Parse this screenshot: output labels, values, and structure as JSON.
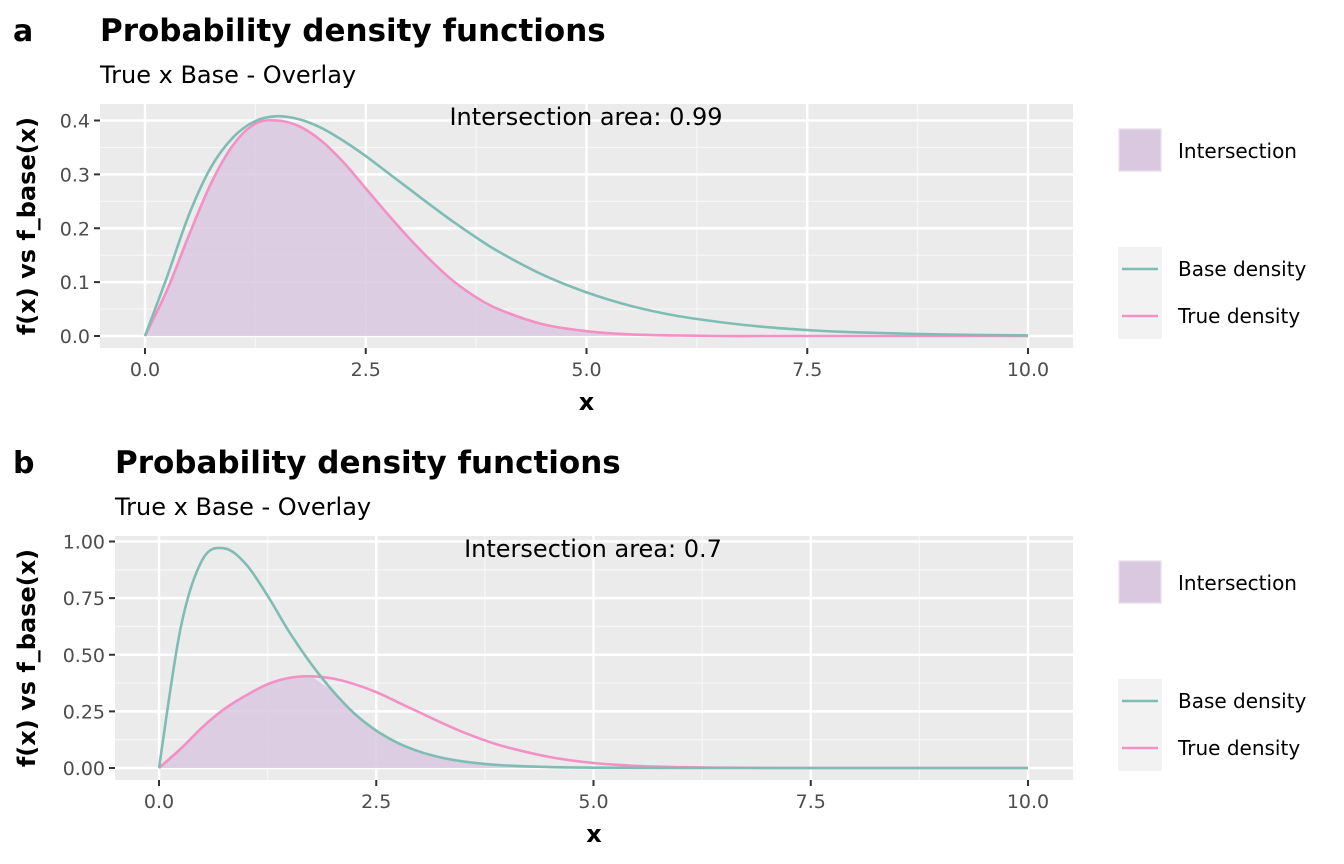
{
  "chart_data": [
    {
      "type": "line",
      "tag": "a",
      "title": "Probability density functions",
      "subtitle": "True x Base - Overlay",
      "xlabel": "x",
      "ylabel": "f(x) vs f_base(x)",
      "xlim": [
        0,
        10
      ],
      "ylim": [
        0,
        0.4
      ],
      "x_ticks": [
        "0.0",
        "2.5",
        "5.0",
        "7.5",
        "10.0"
      ],
      "y_ticks": [
        "0.0",
        "0.1",
        "0.2",
        "0.3",
        "0.4"
      ],
      "annotation": "Intersection area:  0.99",
      "x": [
        0,
        0.25,
        0.5,
        0.75,
        1,
        1.25,
        1.5,
        1.75,
        2,
        2.25,
        2.5,
        2.75,
        3,
        3.25,
        3.5,
        3.75,
        4,
        4.5,
        5,
        5.5,
        6,
        6.5,
        7,
        7.5,
        8,
        9,
        10
      ],
      "series": [
        {
          "name": "Base density",
          "color": "#7fbdb4",
          "values": [
            0,
            0.11,
            0.226,
            0.314,
            0.369,
            0.399,
            0.408,
            0.402,
            0.386,
            0.362,
            0.334,
            0.303,
            0.272,
            0.241,
            0.211,
            0.183,
            0.157,
            0.114,
            0.081,
            0.056,
            0.038,
            0.026,
            0.017,
            0.011,
            0.007,
            0.003,
            0.001
          ]
        },
        {
          "name": "True density",
          "color": "#f390c4",
          "values": [
            0,
            0.085,
            0.188,
            0.284,
            0.355,
            0.394,
            0.4,
            0.389,
            0.362,
            0.322,
            0.274,
            0.226,
            0.18,
            0.138,
            0.101,
            0.072,
            0.05,
            0.022,
            0.009,
            0.003,
            0.001,
            0,
            0,
            0,
            0,
            0,
            0
          ]
        }
      ],
      "intersection": {
        "name": "Intersection",
        "color": "#d9c8e0"
      }
    },
    {
      "type": "line",
      "tag": "b",
      "title": "Probability density functions",
      "subtitle": "True x Base - Overlay",
      "xlabel": "x",
      "ylabel": "f(x) vs f_base(x)",
      "xlim": [
        0,
        10
      ],
      "ylim": [
        0,
        1
      ],
      "x_ticks": [
        "0.0",
        "2.5",
        "5.0",
        "7.5",
        "10.0"
      ],
      "y_ticks": [
        "0.00",
        "0.25",
        "0.50",
        "0.75",
        "1.00"
      ],
      "annotation": "Intersection area:  0.7",
      "x": [
        0,
        0.25,
        0.5,
        0.75,
        1,
        1.25,
        1.5,
        1.75,
        2,
        2.25,
        2.5,
        2.75,
        3,
        3.25,
        3.5,
        3.75,
        4,
        4.5,
        5,
        5.5,
        6,
        6.5,
        7,
        7.5,
        8,
        9,
        10
      ],
      "series": [
        {
          "name": "Base density",
          "color": "#7fbdb4",
          "values": [
            0,
            0.62,
            0.92,
            0.97,
            0.9,
            0.76,
            0.6,
            0.46,
            0.34,
            0.24,
            0.165,
            0.11,
            0.072,
            0.046,
            0.029,
            0.018,
            0.011,
            0.004,
            0.0015,
            0.0005,
            0,
            0,
            0,
            0,
            0,
            0,
            0
          ]
        },
        {
          "name": "True density",
          "color": "#f390c4",
          "values": [
            0,
            0.085,
            0.18,
            0.26,
            0.32,
            0.37,
            0.398,
            0.405,
            0.395,
            0.37,
            0.335,
            0.29,
            0.245,
            0.2,
            0.158,
            0.122,
            0.092,
            0.048,
            0.022,
            0.009,
            0.0035,
            0.0012,
            0.0004,
            0,
            0,
            0,
            0
          ]
        }
      ],
      "intersection": {
        "name": "Intersection",
        "color": "#d9c8e0"
      }
    }
  ]
}
